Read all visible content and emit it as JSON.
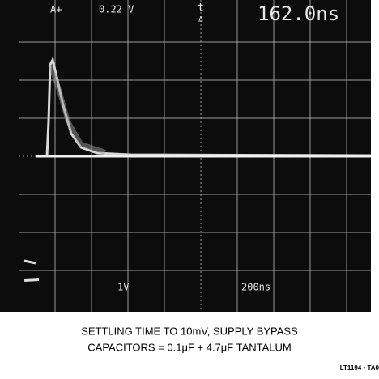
{
  "screen": {
    "channel": "A+",
    "cursor_voltage": "0.22 V",
    "delta_symbol": "t",
    "delta_mark": "Δ",
    "delta_time": "162.0ns",
    "vertical_scale": "1V",
    "horizontal_scale": "200ns"
  },
  "caption": {
    "line1": "SETTLING TIME TO 10mV, SUPPLY BYPASS",
    "line2": "CAPACITORS = 0.1μF + 4.7μF TANTALUM"
  },
  "figure_id": "LT1194 • TA0"
}
